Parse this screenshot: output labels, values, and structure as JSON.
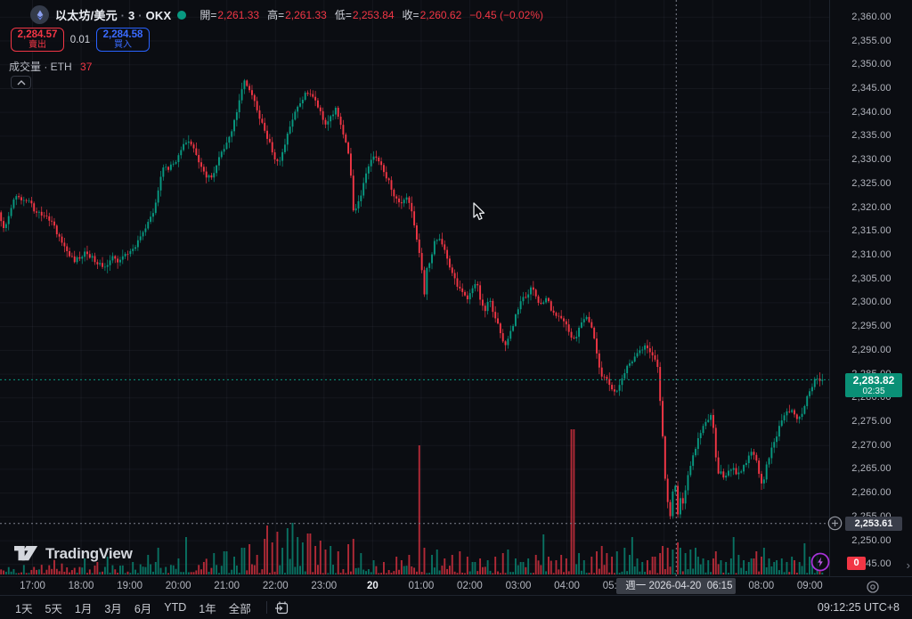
{
  "header": {
    "symbol": "以太坊/美元",
    "sep": "·",
    "interval": "3",
    "exchange": "OKX",
    "ohlc": {
      "open_label": "開=",
      "open": "2,261.33",
      "high_label": "高=",
      "high": "2,261.33",
      "low_label": "低=",
      "low": "2,253.84",
      "close_label": "收=",
      "close": "2,260.62",
      "change": "−0.45 (−0.02%)"
    }
  },
  "trade_buttons": {
    "sell_price": "2,284.57",
    "sell_label": "賣出",
    "spread": "0.01",
    "buy_price": "2,284.58",
    "buy_label": "買入"
  },
  "volume_indicator": {
    "label": "成交量 · ETH",
    "value": "37"
  },
  "price_scale": {
    "ticks": [
      "2,360.00",
      "2,355.00",
      "2,350.00",
      "2,345.00",
      "2,340.00",
      "2,335.00",
      "2,330.00",
      "2,325.00",
      "2,320.00",
      "2,315.00",
      "2,310.00",
      "2,305.00",
      "2,300.00",
      "2,295.00",
      "2,290.00",
      "2,285.00",
      "2,280.00",
      "2,275.00",
      "2,270.00",
      "2,265.00",
      "2,260.00",
      "2,255.00",
      "2,250.00",
      "2,245.00"
    ],
    "last_price_label": "2,283.82",
    "countdown": "02:35",
    "crosshair_price_label": "2,253.61",
    "volume_badge": "0",
    "more_chevron": "›"
  },
  "time_scale": {
    "ticks": [
      "17:00",
      "18:00",
      "19:00",
      "20:00",
      "21:00",
      "22:00",
      "23:00",
      "20",
      "01:00",
      "02:00",
      "03:00",
      "04:00",
      "05:00",
      "06:00",
      "07:00",
      "08:00",
      "09:00"
    ],
    "bold_index": 7,
    "crosshair_label": "週一 2026-04-20  06:15"
  },
  "toolbar": {
    "ranges": [
      "1天",
      "5天",
      "1月",
      "3月",
      "6月",
      "YTD",
      "1年",
      "全部"
    ],
    "clock": "09:12:25 UTC+8"
  },
  "logo_text": "TradingView",
  "colors": {
    "background": "#0b0d12",
    "up": "#089981",
    "down": "#f23645",
    "buy_blue": "#2962ff",
    "axis_text": "#b2b5be",
    "grid": "rgba(200,208,228,0.055)",
    "last_badge": "#0a9076",
    "crosshair_badge": "#3a3e4a",
    "alert_purple": "#a832d8"
  },
  "chart_data": {
    "type": "candlestick",
    "symbol": "以太坊/美元 (ETH/USD)",
    "exchange": "OKX",
    "interval_minutes": 3,
    "title": "以太坊/美元 · 3 · OKX",
    "y_axis": {
      "min": 2245,
      "max": 2360,
      "tick_step": 5
    },
    "x_axis": {
      "start": "17:00",
      "end": "09:17",
      "hour_ticks": [
        "17:00",
        "18:00",
        "19:00",
        "20:00",
        "21:00",
        "22:00",
        "23:00",
        "20",
        "01:00",
        "02:00",
        "03:00",
        "04:00",
        "05:00",
        "06:00",
        "07:00",
        "08:00",
        "09:00"
      ]
    },
    "legend": "成交量 · ETH = 37",
    "crosshair": {
      "time": "2026-04-20 06:15",
      "price": 2253.61,
      "bar_ohlc": {
        "open": 2261.33,
        "high": 2261.33,
        "low": 2253.84,
        "close": 2260.62,
        "change": -0.45,
        "change_pct": -0.02
      }
    },
    "last_price": 2283.82,
    "session_low": 2253.84,
    "price_path": [
      [
        0,
        2319
      ],
      [
        6,
        2315.5
      ],
      [
        10,
        2317
      ],
      [
        15,
        2321
      ],
      [
        21,
        2322.5
      ],
      [
        27,
        2321.5
      ],
      [
        33,
        2322
      ],
      [
        40,
        2319.5
      ],
      [
        47,
        2318.5
      ],
      [
        54,
        2318
      ],
      [
        60,
        2317
      ],
      [
        66,
        2314.5
      ],
      [
        72,
        2312.5
      ],
      [
        78,
        2310.5
      ],
      [
        85,
        2309
      ],
      [
        92,
        2309.5
      ],
      [
        98,
        2311
      ],
      [
        104,
        2309.5
      ],
      [
        110,
        2308.5
      ],
      [
        116,
        2307.5
      ],
      [
        122,
        2308
      ],
      [
        128,
        2309.5
      ],
      [
        134,
        2308.5
      ],
      [
        140,
        2309.5
      ],
      [
        147,
        2310.5
      ],
      [
        154,
        2312
      ],
      [
        161,
        2314.5
      ],
      [
        168,
        2317
      ],
      [
        174,
        2319.5
      ],
      [
        179,
        2324
      ],
      [
        184,
        2328.5
      ],
      [
        190,
        2328
      ],
      [
        196,
        2329
      ],
      [
        202,
        2331
      ],
      [
        208,
        2333.5
      ],
      [
        212,
        2334.5
      ],
      [
        217,
        2333
      ],
      [
        222,
        2331
      ],
      [
        228,
        2328.5
      ],
      [
        234,
        2326.5
      ],
      [
        239,
        2326
      ],
      [
        244,
        2328.5
      ],
      [
        250,
        2331.5
      ],
      [
        256,
        2334
      ],
      [
        261,
        2336
      ],
      [
        266,
        2339
      ],
      [
        271,
        2343.5
      ],
      [
        275,
        2347
      ],
      [
        278,
        2346
      ],
      [
        282,
        2344
      ],
      [
        287,
        2342.5
      ],
      [
        292,
        2339.5
      ],
      [
        298,
        2336.5
      ],
      [
        304,
        2333.5
      ],
      [
        309,
        2330.5
      ],
      [
        314,
        2329
      ],
      [
        319,
        2332
      ],
      [
        325,
        2336
      ],
      [
        331,
        2339
      ],
      [
        337,
        2341.5
      ],
      [
        343,
        2343.5
      ],
      [
        349,
        2344.5
      ],
      [
        354,
        2343.5
      ],
      [
        359,
        2341
      ],
      [
        364,
        2338.5
      ],
      [
        369,
        2337.5
      ],
      [
        374,
        2339.5
      ],
      [
        379,
        2341
      ],
      [
        384,
        2337.5
      ],
      [
        389,
        2334
      ],
      [
        394,
        2330
      ],
      [
        398,
        2319.5
      ],
      [
        402,
        2320.5
      ],
      [
        407,
        2323
      ],
      [
        412,
        2326.5
      ],
      [
        417,
        2329.5
      ],
      [
        422,
        2331
      ],
      [
        427,
        2329.5
      ],
      [
        433,
        2327.5
      ],
      [
        439,
        2325
      ],
      [
        445,
        2322
      ],
      [
        451,
        2320.5
      ],
      [
        457,
        2322.5
      ],
      [
        463,
        2319.5
      ],
      [
        468,
        2315
      ],
      [
        472,
        2310.5
      ],
      [
        475,
        2306.5
      ],
      [
        477,
        2298.5
      ],
      [
        479,
        2306
      ],
      [
        484,
        2309
      ],
      [
        490,
        2313
      ],
      [
        496,
        2313.5
      ],
      [
        502,
        2310.5
      ],
      [
        508,
        2306.5
      ],
      [
        514,
        2304
      ],
      [
        520,
        2302
      ],
      [
        526,
        2301
      ],
      [
        532,
        2303
      ],
      [
        537,
        2304.5
      ],
      [
        541,
        2300.5
      ],
      [
        546,
        2298.5
      ],
      [
        551,
        2300.5
      ],
      [
        556,
        2297.5
      ],
      [
        561,
        2295.5
      ],
      [
        566,
        2292
      ],
      [
        570,
        2291
      ],
      [
        575,
        2294
      ],
      [
        581,
        2297.5
      ],
      [
        587,
        2300.5
      ],
      [
        593,
        2301.5
      ],
      [
        599,
        2303.5
      ],
      [
        604,
        2301
      ],
      [
        609,
        2299.5
      ],
      [
        614,
        2301.5
      ],
      [
        619,
        2299
      ],
      [
        625,
        2297.5
      ],
      [
        631,
        2297
      ],
      [
        637,
        2295.5
      ],
      [
        642,
        2293
      ],
      [
        647,
        2292.5
      ],
      [
        652,
        2294.5
      ],
      [
        658,
        2297
      ],
      [
        663,
        2296
      ],
      [
        668,
        2293
      ],
      [
        672,
        2289
      ],
      [
        677,
        2284
      ],
      [
        682,
        2284.5
      ],
      [
        687,
        2282.5
      ],
      [
        692,
        2281
      ],
      [
        697,
        2282.5
      ],
      [
        702,
        2285
      ],
      [
        708,
        2287.5
      ],
      [
        714,
        2288.5
      ],
      [
        720,
        2290
      ],
      [
        726,
        2291
      ],
      [
        731,
        2289.5
      ],
      [
        736,
        2288.5
      ],
      [
        740,
        2286.5
      ],
      [
        744,
        2276
      ],
      [
        748,
        2264
      ],
      [
        751,
        2258
      ],
      [
        754,
        2255.5
      ],
      [
        757,
        2260.5
      ],
      [
        760,
        2261.5
      ],
      [
        762,
        2254.5
      ],
      [
        764,
        2260.5
      ],
      [
        767,
        2257
      ],
      [
        770,
        2259.5
      ],
      [
        774,
        2263.5
      ],
      [
        778,
        2266.5
      ],
      [
        782,
        2269.5
      ],
      [
        786,
        2272
      ],
      [
        791,
        2274
      ],
      [
        796,
        2275.5
      ],
      [
        801,
        2276.5
      ],
      [
        804,
        2270
      ],
      [
        807,
        2264
      ],
      [
        811,
        2264.5
      ],
      [
        815,
        2263
      ],
      [
        819,
        2264.5
      ],
      [
        823,
        2265.5
      ],
      [
        827,
        2264.5
      ],
      [
        831,
        2264
      ],
      [
        835,
        2265.5
      ],
      [
        839,
        2266.5
      ],
      [
        843,
        2268
      ],
      [
        847,
        2268.5
      ],
      [
        851,
        2266.5
      ],
      [
        855,
        2262.5
      ],
      [
        858,
        2262
      ],
      [
        862,
        2265.5
      ],
      [
        866,
        2268.5
      ],
      [
        870,
        2270.5
      ],
      [
        874,
        2272.5
      ],
      [
        878,
        2275
      ],
      [
        882,
        2276.5
      ],
      [
        886,
        2277
      ],
      [
        890,
        2277.5
      ],
      [
        894,
        2276.5
      ],
      [
        898,
        2275.5
      ],
      [
        902,
        2277
      ],
      [
        906,
        2279.5
      ],
      [
        910,
        2281.5
      ],
      [
        914,
        2283
      ],
      [
        918,
        2284.5
      ],
      [
        921,
        2284
      ]
    ],
    "volume_spikes": [
      [
        95,
        18
      ],
      [
        110,
        14
      ],
      [
        120,
        20
      ],
      [
        150,
        14
      ],
      [
        165,
        22
      ],
      [
        178,
        30
      ],
      [
        200,
        18
      ],
      [
        209,
        42
      ],
      [
        230,
        14
      ],
      [
        253,
        26
      ],
      [
        262,
        20
      ],
      [
        273,
        30
      ],
      [
        280,
        34
      ],
      [
        288,
        22
      ],
      [
        296,
        40
      ],
      [
        301,
        55
      ],
      [
        306,
        36
      ],
      [
        311,
        48
      ],
      [
        317,
        30
      ],
      [
        323,
        52
      ],
      [
        329,
        58
      ],
      [
        335,
        42
      ],
      [
        341,
        36
      ],
      [
        347,
        46
      ],
      [
        353,
        32
      ],
      [
        359,
        38
      ],
      [
        366,
        28
      ],
      [
        372,
        32
      ],
      [
        380,
        26
      ],
      [
        390,
        34
      ],
      [
        398,
        40
      ],
      [
        406,
        24
      ],
      [
        420,
        16
      ],
      [
        432,
        14
      ],
      [
        444,
        20
      ],
      [
        452,
        16
      ],
      [
        460,
        22
      ],
      [
        470,
        145
      ],
      [
        477,
        30
      ],
      [
        484,
        22
      ],
      [
        492,
        28
      ],
      [
        500,
        18
      ],
      [
        508,
        22
      ],
      [
        516,
        26
      ],
      [
        524,
        20
      ],
      [
        532,
        14
      ],
      [
        540,
        18
      ],
      [
        548,
        16
      ],
      [
        556,
        20
      ],
      [
        564,
        24
      ],
      [
        570,
        28
      ],
      [
        578,
        18
      ],
      [
        586,
        14
      ],
      [
        594,
        18
      ],
      [
        602,
        22
      ],
      [
        610,
        45
      ],
      [
        617,
        20
      ],
      [
        624,
        16
      ],
      [
        630,
        22
      ],
      [
        637,
        18
      ],
      [
        643,
        163
      ],
      [
        650,
        24
      ],
      [
        657,
        16
      ],
      [
        664,
        20
      ],
      [
        670,
        26
      ],
      [
        676,
        32
      ],
      [
        682,
        24
      ],
      [
        688,
        20
      ],
      [
        694,
        26
      ],
      [
        700,
        30
      ],
      [
        706,
        22
      ],
      [
        710,
        42
      ],
      [
        716,
        18
      ],
      [
        722,
        14
      ],
      [
        728,
        16
      ],
      [
        734,
        20
      ],
      [
        740,
        24
      ],
      [
        745,
        32
      ],
      [
        750,
        30
      ],
      [
        755,
        28
      ],
      [
        760,
        36
      ],
      [
        765,
        30
      ],
      [
        770,
        24
      ],
      [
        775,
        28
      ],
      [
        780,
        30
      ],
      [
        785,
        20
      ],
      [
        790,
        18
      ],
      [
        796,
        16
      ],
      [
        800,
        18
      ],
      [
        805,
        26
      ],
      [
        810,
        16
      ],
      [
        815,
        14
      ],
      [
        820,
        18
      ],
      [
        825,
        42
      ],
      [
        830,
        22
      ],
      [
        835,
        16
      ],
      [
        840,
        14
      ],
      [
        845,
        18
      ],
      [
        850,
        26
      ],
      [
        855,
        20
      ],
      [
        858,
        30
      ],
      [
        863,
        18
      ],
      [
        868,
        14
      ],
      [
        873,
        16
      ],
      [
        878,
        18
      ],
      [
        883,
        14
      ],
      [
        888,
        20
      ],
      [
        893,
        16
      ],
      [
        898,
        14
      ],
      [
        903,
        35
      ],
      [
        908,
        20
      ],
      [
        913,
        16
      ],
      [
        918,
        24
      ]
    ]
  }
}
